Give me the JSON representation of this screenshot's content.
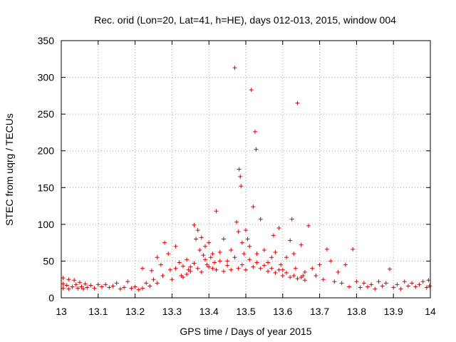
{
  "chart_data": {
    "type": "scatter",
    "title": "Rec. orid (Lon=20, Lat=41, h=HE), days 012-013, 2015, window 004",
    "xlabel": "GPS time / Days of year 2015",
    "ylabel": "STEC from uqrg / TECUs",
    "xlim": [
      13,
      14
    ],
    "ylim": [
      0,
      350
    ],
    "xticks": [
      "13",
      "13.1",
      "13.2",
      "13.3",
      "13.4",
      "13.5",
      "13.6",
      "13.7",
      "13.8",
      "13.9",
      "14"
    ],
    "yticks": [
      "0",
      "50",
      "100",
      "150",
      "200",
      "250",
      "300",
      "350"
    ],
    "grid": true,
    "marker": "+",
    "color": "#e00000",
    "series": [
      {
        "name": "STEC",
        "points": [
          [
            13.005,
            27
          ],
          [
            13.005,
            19
          ],
          [
            13.005,
            13
          ],
          [
            13.015,
            17
          ],
          [
            13.02,
            25
          ],
          [
            13.02,
            12
          ],
          [
            13.03,
            15
          ],
          [
            13.035,
            24
          ],
          [
            13.04,
            18
          ],
          [
            13.045,
            13
          ],
          [
            13.05,
            21
          ],
          [
            13.055,
            15
          ],
          [
            13.06,
            12
          ],
          [
            13.065,
            19
          ],
          [
            13.07,
            14
          ],
          [
            13.08,
            17
          ],
          [
            13.09,
            13
          ],
          [
            13.1,
            18
          ],
          [
            13.11,
            15
          ],
          [
            13.12,
            18
          ],
          [
            13.13,
            14
          ],
          [
            13.14,
            16
          ],
          [
            13.15,
            20
          ],
          [
            13.16,
            12
          ],
          [
            13.17,
            14
          ],
          [
            13.18,
            22
          ],
          [
            13.19,
            13
          ],
          [
            13.2,
            15
          ],
          [
            13.21,
            11
          ],
          [
            13.22,
            40
          ],
          [
            13.22,
            13
          ],
          [
            13.23,
            20
          ],
          [
            13.24,
            16
          ],
          [
            13.245,
            37
          ],
          [
            13.25,
            25
          ],
          [
            13.26,
            55
          ],
          [
            13.26,
            20
          ],
          [
            13.27,
            45
          ],
          [
            13.275,
            30
          ],
          [
            13.28,
            75
          ],
          [
            13.29,
            60
          ],
          [
            13.295,
            38
          ],
          [
            13.3,
            25
          ],
          [
            13.31,
            70
          ],
          [
            13.31,
            40
          ],
          [
            13.32,
            48
          ],
          [
            13.325,
            30
          ],
          [
            13.33,
            28
          ],
          [
            13.34,
            52
          ],
          [
            13.345,
            38
          ],
          [
            13.35,
            42
          ],
          [
            13.36,
            99
          ],
          [
            13.365,
            80
          ],
          [
            13.37,
            92
          ],
          [
            13.375,
            65
          ],
          [
            13.38,
            82
          ],
          [
            13.385,
            58
          ],
          [
            13.39,
            70
          ],
          [
            13.395,
            45
          ],
          [
            13.4,
            75
          ],
          [
            13.405,
            55
          ],
          [
            13.41,
            40
          ],
          [
            13.415,
            48
          ],
          [
            13.42,
            118
          ],
          [
            13.43,
            62
          ],
          [
            13.44,
            80
          ],
          [
            13.45,
            50
          ],
          [
            13.46,
            65
          ],
          [
            13.47,
            313
          ],
          [
            13.475,
            103
          ],
          [
            13.48,
            90
          ],
          [
            13.482,
            175
          ],
          [
            13.485,
            165
          ],
          [
            13.487,
            152
          ],
          [
            13.49,
            75
          ],
          [
            13.495,
            60
          ],
          [
            13.5,
            92
          ],
          [
            13.505,
            80
          ],
          [
            13.51,
            70
          ],
          [
            13.515,
            283
          ],
          [
            13.52,
            124
          ],
          [
            13.525,
            226
          ],
          [
            13.528,
            202
          ],
          [
            13.53,
            60
          ],
          [
            13.54,
            107
          ],
          [
            13.55,
            65
          ],
          [
            13.56,
            48
          ],
          [
            13.57,
            55
          ],
          [
            13.575,
            85
          ],
          [
            13.58,
            62
          ],
          [
            13.59,
            95
          ],
          [
            13.595,
            45
          ],
          [
            13.6,
            38
          ],
          [
            13.61,
            55
          ],
          [
            13.62,
            78
          ],
          [
            13.625,
            107
          ],
          [
            13.63,
            60
          ],
          [
            13.635,
            40
          ],
          [
            13.64,
            265
          ],
          [
            13.65,
            72
          ],
          [
            13.655,
            30
          ],
          [
            13.66,
            35
          ],
          [
            13.67,
            98
          ],
          [
            13.68,
            40
          ],
          [
            13.69,
            30
          ],
          [
            13.7,
            45
          ],
          [
            13.71,
            25
          ],
          [
            13.72,
            66
          ],
          [
            13.73,
            50
          ],
          [
            13.74,
            22
          ],
          [
            13.75,
            35
          ],
          [
            13.76,
            20
          ],
          [
            13.77,
            45
          ],
          [
            13.78,
            15
          ],
          [
            13.79,
            66
          ],
          [
            13.8,
            22
          ],
          [
            13.81,
            14
          ],
          [
            13.82,
            20
          ],
          [
            13.83,
            15
          ],
          [
            13.84,
            18
          ],
          [
            13.85,
            12
          ],
          [
            13.86,
            22
          ],
          [
            13.87,
            16
          ],
          [
            13.88,
            20
          ],
          [
            13.89,
            39
          ],
          [
            13.9,
            14
          ],
          [
            13.91,
            18
          ],
          [
            13.92,
            12
          ],
          [
            13.93,
            22
          ],
          [
            13.94,
            16
          ],
          [
            13.95,
            20
          ],
          [
            13.96,
            15
          ],
          [
            13.97,
            18
          ],
          [
            13.98,
            22
          ],
          [
            13.99,
            14
          ],
          [
            13.995,
            24
          ],
          [
            13.998,
            16
          ],
          [
            13.33,
            43
          ],
          [
            13.34,
            32
          ],
          [
            13.35,
            36
          ],
          [
            13.36,
            47
          ],
          [
            13.37,
            40
          ],
          [
            13.38,
            35
          ],
          [
            13.39,
            52
          ],
          [
            13.4,
            42
          ],
          [
            13.41,
            60
          ],
          [
            13.42,
            38
          ],
          [
            13.43,
            50
          ],
          [
            13.44,
            36
          ],
          [
            13.45,
            44
          ],
          [
            13.46,
            38
          ],
          [
            13.47,
            55
          ],
          [
            13.48,
            40
          ],
          [
            13.49,
            45
          ],
          [
            13.5,
            38
          ],
          [
            13.51,
            52
          ],
          [
            13.52,
            42
          ],
          [
            13.53,
            48
          ],
          [
            13.54,
            40
          ],
          [
            13.55,
            44
          ],
          [
            13.56,
            36
          ],
          [
            13.57,
            40
          ],
          [
            13.58,
            34
          ],
          [
            13.59,
            38
          ],
          [
            13.6,
            30
          ],
          [
            13.61,
            34
          ],
          [
            13.62,
            28
          ],
          [
            13.63,
            30
          ],
          [
            13.64,
            26
          ],
          [
            13.65,
            28
          ],
          [
            13.66,
            24
          ]
        ]
      }
    ]
  }
}
